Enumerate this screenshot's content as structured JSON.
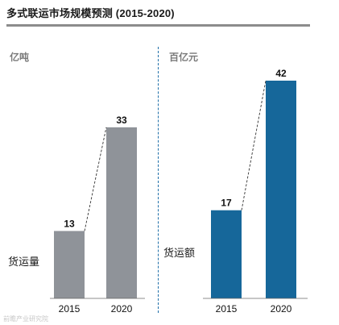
{
  "title": "多式联运市场规模预测 (2015-2020)",
  "watermark": "前瞻产业研究院",
  "chart_data": [
    {
      "type": "bar",
      "unit": "亿吨",
      "metric": "货运量",
      "categories": [
        "2015",
        "2020"
      ],
      "values": [
        13,
        33
      ],
      "color": "#8f9399",
      "ylim": [
        0,
        45
      ],
      "connector": "dashed",
      "grid": false
    },
    {
      "type": "bar",
      "unit": "百亿元",
      "metric": "货运额",
      "categories": [
        "2015",
        "2020"
      ],
      "values": [
        17,
        42
      ],
      "color": "#16679a",
      "ylim": [
        0,
        45
      ],
      "connector": "dashed",
      "grid": false
    }
  ]
}
